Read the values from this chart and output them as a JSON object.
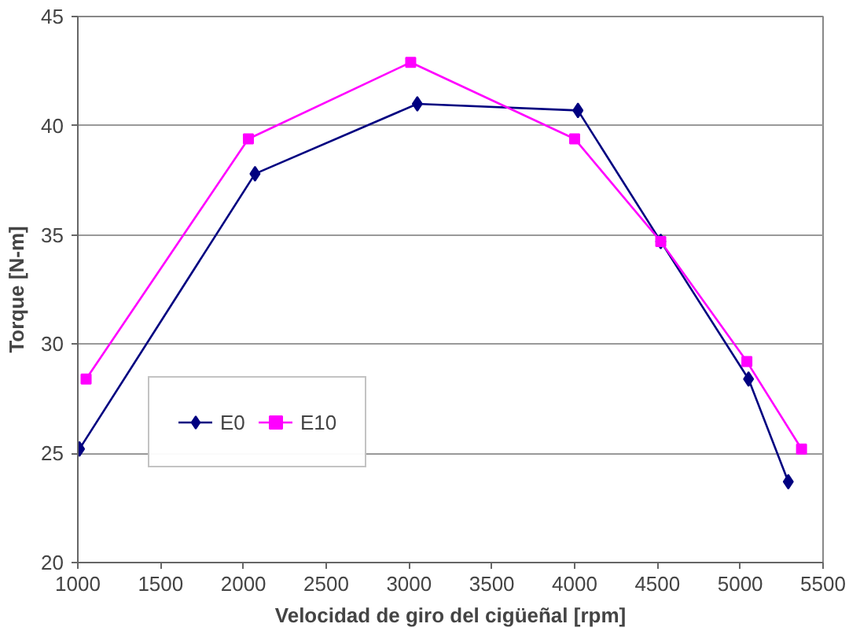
{
  "chart_data": {
    "type": "line",
    "xlabel": "Velocidad de giro del cigüeñal [rpm]",
    "ylabel": "Torque [N-m]",
    "xlim": [
      1000,
      5500
    ],
    "xticks": [
      1000,
      1500,
      2000,
      2500,
      3000,
      3500,
      4000,
      4500,
      5000,
      5500
    ],
    "ylim": [
      20,
      45
    ],
    "yticks": [
      20,
      25,
      30,
      35,
      40,
      45
    ],
    "grid": "y",
    "legend": "left",
    "series": [
      {
        "name": "E0",
        "color": "#000080",
        "marker": "diamond",
        "x": [
          1010,
          2070,
          3050,
          4020,
          4520,
          5050,
          5290
        ],
        "values": [
          25.2,
          37.8,
          41.0,
          40.7,
          34.7,
          28.4,
          23.7
        ]
      },
      {
        "name": "E10",
        "color": "#ff00ff",
        "marker": "square",
        "x": [
          1050,
          2030,
          3010,
          4000,
          4520,
          5040,
          5370
        ],
        "values": [
          28.4,
          39.4,
          42.9,
          39.4,
          34.7,
          29.2,
          25.2
        ]
      }
    ]
  }
}
